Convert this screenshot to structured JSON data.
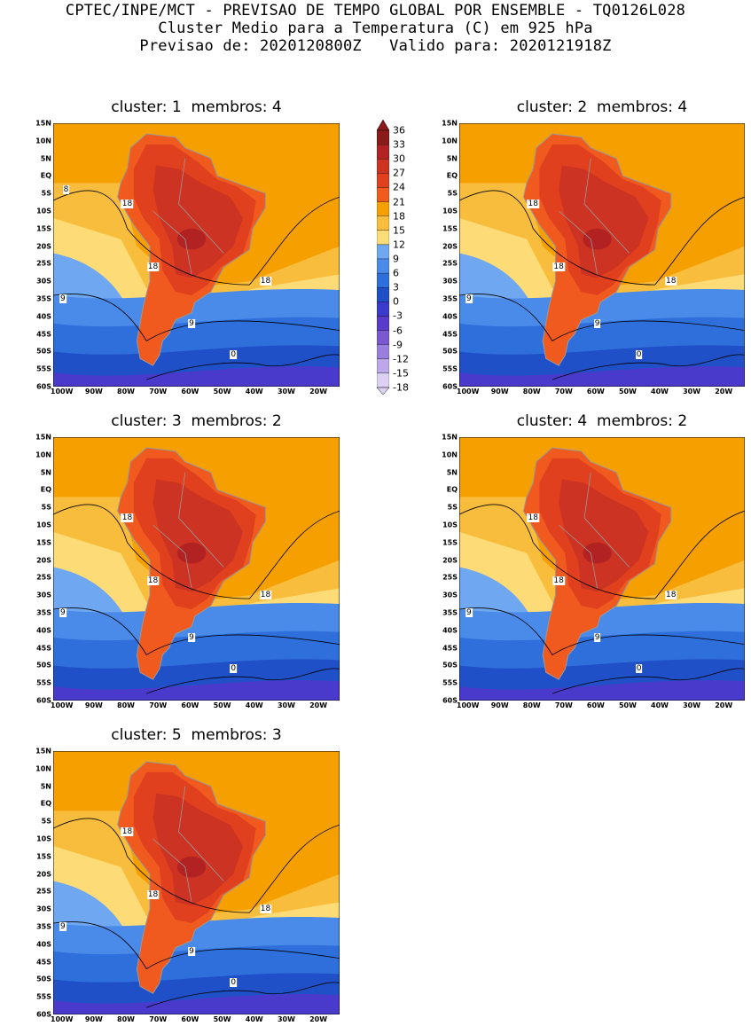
{
  "header": {
    "line1": "CPTEC/INPE/MCT - PREVISAO DE TEMPO GLOBAL POR ENSEMBLE - TQ0126L028",
    "line2": "Cluster Medio para a Temperatura (C) em 925 hPa",
    "line3": "Previsao de: 2020120800Z   Valido para: 2020121918Z"
  },
  "panels": [
    {
      "title": "cluster: 1  membros: 4",
      "labels": {
        "l18a": "18",
        "l18b": "18",
        "l18c": "18",
        "l9a": "9",
        "l9b": "9",
        "l0": "0",
        "l8": "8"
      }
    },
    {
      "title": "cluster: 2  membros: 4",
      "labels": {
        "l18a": "18",
        "l18b": "18",
        "l18c": "18",
        "l9a": "9",
        "l9b": "9",
        "l0": "0",
        "l8": ""
      }
    },
    {
      "title": "cluster: 3  membros: 2",
      "labels": {
        "l18a": "18",
        "l18b": "18",
        "l18c": "18",
        "l9a": "9",
        "l9b": "9",
        "l0": "0",
        "l8": ""
      }
    },
    {
      "title": "cluster: 4  membros: 2",
      "labels": {
        "l18a": "18",
        "l18b": "18",
        "l18c": "18",
        "l9a": "9",
        "l9b": "9",
        "l0": "0",
        "l8": ""
      }
    },
    {
      "title": "cluster: 5  membros: 3",
      "labels": {
        "l18a": "18",
        "l18b": "18",
        "l18c": "18",
        "l9a": "9",
        "l9b": "9",
        "l0": "0",
        "l8": ""
      }
    }
  ],
  "lat_labels": [
    "15N",
    "10N",
    "5N",
    "EQ",
    "5S",
    "10S",
    "15S",
    "20S",
    "25S",
    "30S",
    "35S",
    "40S",
    "45S",
    "50S",
    "55S",
    "60S"
  ],
  "lon_labels": [
    "100W",
    "90W",
    "80W",
    "70W",
    "60W",
    "50W",
    "40W",
    "30W",
    "20W"
  ],
  "colorbar": {
    "labels": [
      "36",
      "33",
      "30",
      "27",
      "24",
      "21",
      "18",
      "15",
      "12",
      "9",
      "6",
      "3",
      "0",
      "-3",
      "-6",
      "-9",
      "-12",
      "-15",
      "-18"
    ],
    "colors": [
      "#8b1a1a",
      "#b22222",
      "#cc3322",
      "#e0401e",
      "#f05a1e",
      "#f5a000",
      "#f8bd3c",
      "#fddc78",
      "#6fa8f0",
      "#4a8ae8",
      "#2f6fdc",
      "#2050c8",
      "#3a3acc",
      "#5a3ac8",
      "#7a58d2",
      "#9a80de",
      "#bca8ea",
      "#ddd2f5"
    ]
  },
  "colors": {
    "ocean_warm": "#f5a000",
    "ocean_mid": "#f8bd3c",
    "ocean_cool": "#fddc78",
    "blue_light": "#6fa8f0",
    "blue_mid": "#4a8ae8",
    "blue_deep": "#2f6fdc",
    "blue_dark": "#2050c8",
    "purple": "#4a3acc",
    "land_hot": "#e0401e",
    "land_hotter": "#cc3322",
    "land_hottest": "#b22222",
    "andes": "#f05a1e",
    "border": "#999999"
  }
}
